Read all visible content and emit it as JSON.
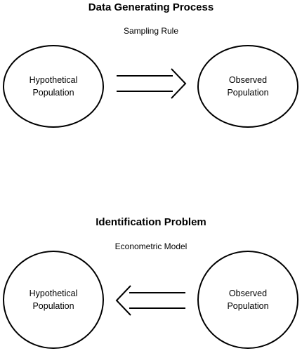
{
  "top": {
    "title": "Data Generating Process",
    "subtitle": "Sampling Rule",
    "left_circle": "Hypothetical\nPopulation",
    "right_circle": "Observed\nPopulation",
    "arrow_direction": "right"
  },
  "bottom": {
    "title": "Identification Problem",
    "subtitle": "Econometric Model",
    "left_circle": "Hypothetical\nPopulation",
    "right_circle": "Observed\nPopulation",
    "arrow_direction": "left"
  }
}
